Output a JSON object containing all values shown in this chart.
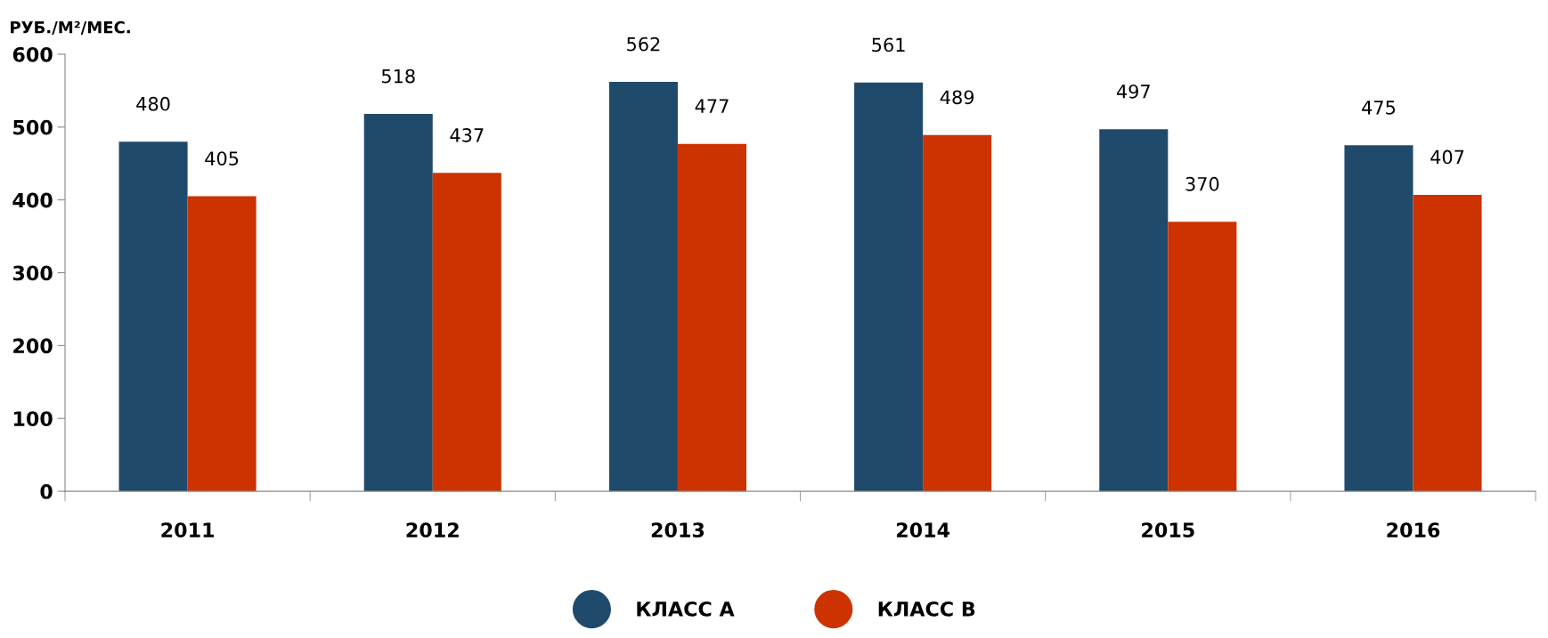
{
  "chart_data": {
    "type": "bar",
    "ylabel": "РУБ./М²/МЕС.",
    "categories": [
      "2011",
      "2012",
      "2013",
      "2014",
      "2015",
      "2016"
    ],
    "series": [
      {
        "name": "КЛАСС А",
        "color": "#1f4a6b",
        "values": [
          480,
          518,
          562,
          561,
          497,
          475
        ]
      },
      {
        "name": "КЛАСС B",
        "color": "#cc3300",
        "values": [
          405,
          437,
          477,
          489,
          370,
          407
        ]
      }
    ],
    "ylim": [
      0,
      600
    ],
    "yticks": [
      0,
      100,
      200,
      300,
      400,
      500,
      600
    ],
    "grid": false,
    "legend": "bottom",
    "data_labels": true
  }
}
